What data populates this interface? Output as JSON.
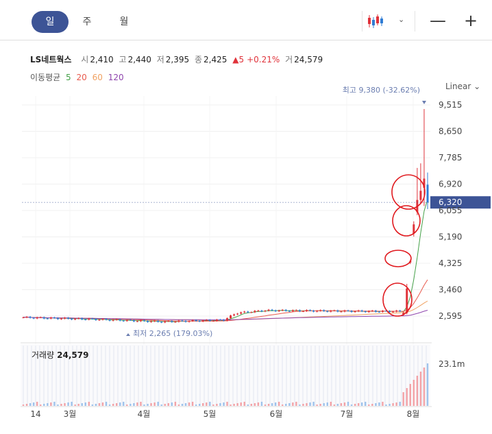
{
  "period_tabs": [
    {
      "label": "일",
      "active": true
    },
    {
      "label": "주",
      "active": false
    },
    {
      "label": "월",
      "active": false
    }
  ],
  "icons": {
    "chart_type": "candlestick-icon",
    "dropdown": "chevron-down-icon",
    "zoom_out": "minus-icon",
    "zoom_in": "plus-icon"
  },
  "toolbar": {
    "chevron": "⌄",
    "zoom_out": "—",
    "zoom_in": "+"
  },
  "quote": {
    "name": "LS네트웍스",
    "open_label": "시",
    "open": "2,410",
    "high_label": "고",
    "high": "2,440",
    "low_label": "저",
    "low": "2,395",
    "close_label": "종",
    "close": "2,425",
    "change": "▲5",
    "change_pct": "+0.21%",
    "volume_label": "거",
    "volume": "24,579"
  },
  "ma_legend": {
    "label": "이동평균",
    "periods": [
      {
        "value": "5",
        "color": "#43a047"
      },
      {
        "value": "20",
        "color": "#e8594c"
      },
      {
        "value": "60",
        "color": "#f0a060"
      },
      {
        "value": "120",
        "color": "#8e44ad"
      }
    ]
  },
  "scale_mode": "Linear",
  "volume_panel": {
    "label": "거래량",
    "value": "24,579",
    "axis_label": "23.1m"
  },
  "colors": {
    "up": "#e0323a",
    "down": "#2f7cd4",
    "accent": "#3d5496",
    "current_price_badge": "#3d5496",
    "annotation": "#e0191e"
  },
  "chart_data": {
    "type": "candlestick",
    "y_ticks": [
      "9,515",
      "8,650",
      "7,785",
      "6,920",
      "6,055",
      "5,190",
      "4,325",
      "3,460",
      "2,595"
    ],
    "y_tick_values": [
      9515,
      8650,
      7785,
      6920,
      6055,
      5190,
      4325,
      3460,
      2595
    ],
    "x_ticks": [
      "14",
      "3월",
      "4월",
      "5월",
      "6월",
      "7월",
      "8월"
    ],
    "current_price": {
      "label": "6,320",
      "value": 6320
    },
    "high_annotation": {
      "text": "최고 9,380 (-32.62%)",
      "value": 9380
    },
    "low_annotation": {
      "text": "최저 2,265 (179.03%)",
      "value": 2265
    },
    "volume_axis": "23.1m",
    "ma_periods": [
      5,
      20,
      60,
      120
    ],
    "grid": true
  }
}
